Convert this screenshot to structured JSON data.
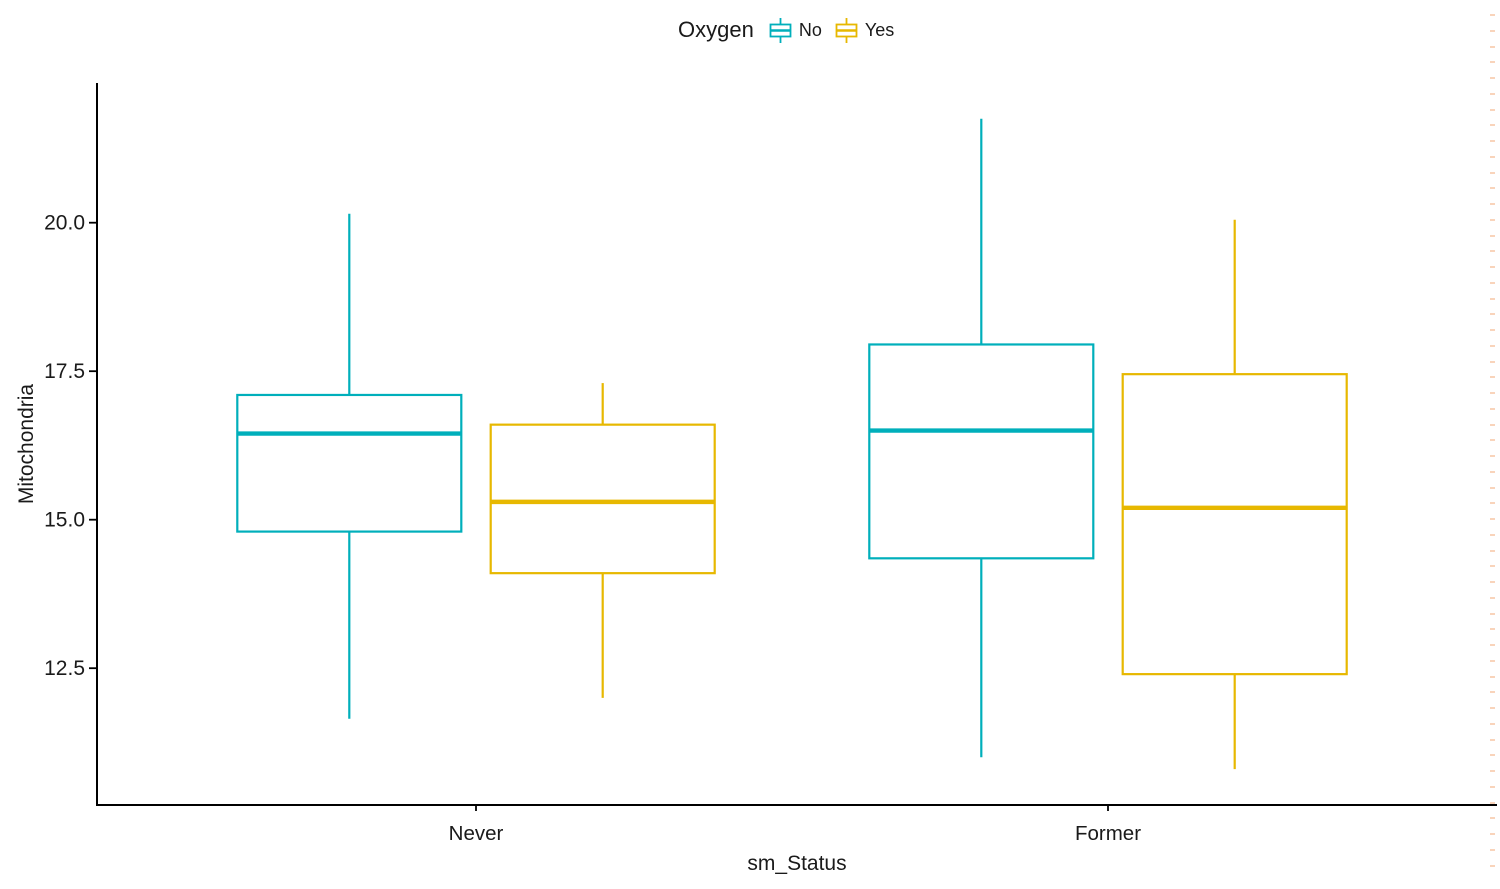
{
  "legend": {
    "title": "Oxygen",
    "position": "top",
    "entries": [
      {
        "label": "No",
        "color": "#00AFBB"
      },
      {
        "label": "Yes",
        "color": "#E7B800"
      }
    ]
  },
  "axes": {
    "xlabel": "sm_Status",
    "ylabel": "Mitochondria",
    "x_categories": [
      "Never",
      "Former"
    ],
    "y_tick_labels": [
      "12.5",
      "15.0",
      "17.5",
      "20.0"
    ]
  },
  "chart_data": {
    "type": "boxplot",
    "title": "",
    "xlabel": "sm_Status",
    "ylabel": "Mitochondria",
    "categories": [
      "Never",
      "Former"
    ],
    "yticks": [
      12.5,
      15.0,
      17.5,
      20.0
    ],
    "ylim": [
      10.3,
      22.35
    ],
    "grid": false,
    "legend_title": "Oxygen",
    "legend_position": "top",
    "series": [
      {
        "name": "No",
        "color": "#00AFBB",
        "boxes": [
          {
            "category": "Never",
            "min": 11.65,
            "q1": 14.8,
            "median": 16.45,
            "q3": 17.1,
            "max": 20.15
          },
          {
            "category": "Former",
            "min": 11.0,
            "q1": 14.35,
            "median": 16.5,
            "q3": 17.95,
            "max": 21.75
          }
        ]
      },
      {
        "name": "Yes",
        "color": "#E7B800",
        "boxes": [
          {
            "category": "Never",
            "min": 12.0,
            "q1": 14.1,
            "median": 15.3,
            "q3": 16.6,
            "max": 17.3
          },
          {
            "category": "Former",
            "min": 10.8,
            "q1": 12.4,
            "median": 15.2,
            "q3": 17.45,
            "max": 20.05
          }
        ]
      }
    ]
  },
  "style": {
    "axis_line_color": "#000000",
    "text_color": "#1a1a1a",
    "box_fill": "#ffffff"
  },
  "artifacts": {
    "right_edge_marks_color": "#F4B183"
  }
}
